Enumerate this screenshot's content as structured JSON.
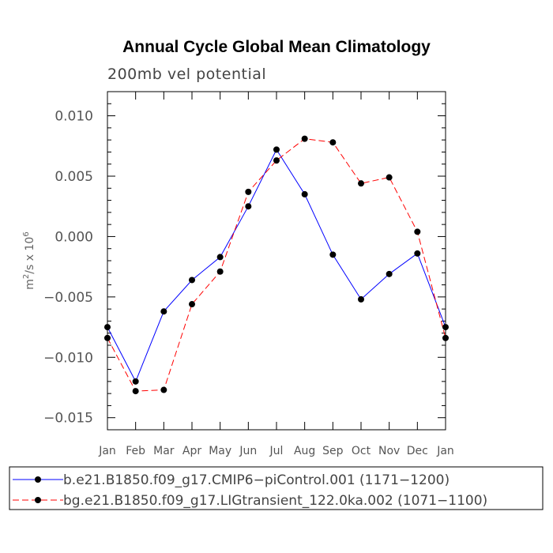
{
  "chart_data": {
    "type": "line",
    "title": "Annual Cycle Global Mean Climatology",
    "subtitle": "200mb vel potential",
    "xlabel": "",
    "ylabel_base": "m",
    "ylabel_sup1": "2",
    "ylabel_mid": "/s x 10",
    "ylabel_sup2": "6",
    "categories": [
      "Jan",
      "Feb",
      "Mar",
      "Apr",
      "May",
      "Jun",
      "Jul",
      "Aug",
      "Sep",
      "Oct",
      "Nov",
      "Dec",
      "Jan"
    ],
    "ylim": [
      -0.016,
      0.012
    ],
    "yticks": [
      -0.015,
      -0.01,
      -0.005,
      0.0,
      0.005,
      0.01
    ],
    "ytick_labels": [
      "−0.015",
      "−0.010",
      "−0.005",
      "0.000",
      "0.005",
      "0.010"
    ],
    "grid": false,
    "legend_position": "bottom",
    "series": [
      {
        "name": "b.e21.B1850.f09_g17.CMIP6−piControl.001 (1171−1200)",
        "color": "#0000ff",
        "dash": "solid",
        "values": [
          -0.0075,
          -0.012,
          -0.0062,
          -0.0036,
          -0.0017,
          0.0025,
          0.0072,
          0.0035,
          -0.0015,
          -0.0052,
          -0.0031,
          -0.0014,
          -0.0075
        ]
      },
      {
        "name": "bg.e21.B1850.f09_g17.LIGtransient_122.0ka.002 (1071−1100)",
        "color": "#ff0000",
        "dash": "dashed",
        "values": [
          -0.0084,
          -0.0128,
          -0.0127,
          -0.0056,
          -0.0029,
          0.0037,
          0.0063,
          0.0081,
          0.0078,
          0.0044,
          0.0049,
          0.0004,
          -0.0084
        ]
      }
    ]
  }
}
